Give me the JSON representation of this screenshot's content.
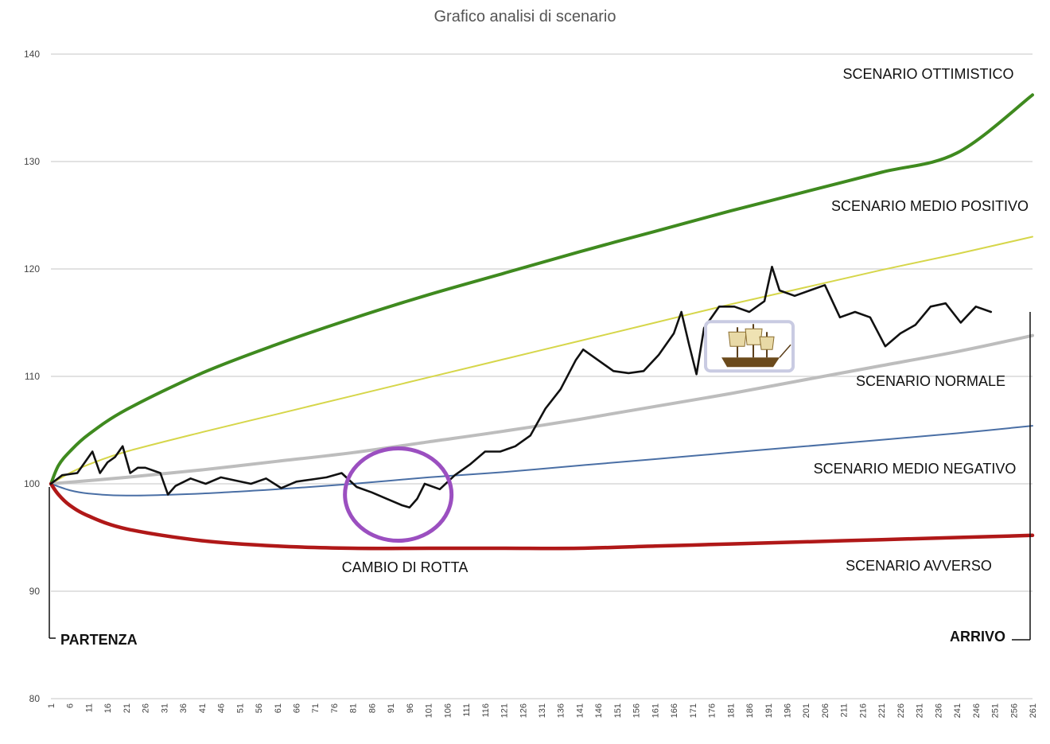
{
  "chart_data": {
    "type": "line",
    "title": "Grafico analisi di scenario",
    "xlabel": "",
    "ylabel": "",
    "ylim": [
      80,
      140
    ],
    "xlim": [
      1,
      261
    ],
    "grid": true,
    "y_ticks": [
      80,
      90,
      100,
      110,
      120,
      130,
      140
    ],
    "x_ticks": [
      1,
      6,
      11,
      16,
      21,
      26,
      31,
      36,
      41,
      46,
      51,
      56,
      61,
      66,
      71,
      76,
      81,
      86,
      91,
      96,
      101,
      106,
      111,
      116,
      121,
      126,
      131,
      136,
      141,
      146,
      151,
      156,
      161,
      166,
      171,
      176,
      181,
      186,
      191,
      196,
      201,
      206,
      211,
      216,
      221,
      226,
      231,
      236,
      241,
      246,
      251,
      256,
      261
    ],
    "series": [
      {
        "key": "ottimistico",
        "label": "SCENARIO OTTIMISTICO",
        "color": "#3f8a1f",
        "x": [
          1,
          3,
          6,
          11,
          21,
          41,
          61,
          81,
          101,
          121,
          141,
          161,
          181,
          201,
          221,
          241,
          261
        ],
        "y": [
          100,
          101.7,
          103.0,
          104.6,
          106.9,
          110.3,
          113.0,
          115.4,
          117.6,
          119.6,
          121.6,
          123.5,
          125.4,
          127.2,
          129.0,
          130.8,
          136.2
        ]
      },
      {
        "key": "medio_positivo",
        "label": "SCENARIO MEDIO POSITIVO",
        "color": "#d6d64a",
        "x": [
          1,
          6,
          11,
          21,
          41,
          61,
          81,
          101,
          121,
          141,
          161,
          181,
          201,
          221,
          241,
          261
        ],
        "y": [
          100,
          101.0,
          101.8,
          103.0,
          104.8,
          106.5,
          108.2,
          109.9,
          111.6,
          113.3,
          115.0,
          116.7,
          118.3,
          119.9,
          121.4,
          123.0
        ]
      },
      {
        "key": "normale",
        "label": "SCENARIO NORMALE",
        "color": "#bdbdbd",
        "x": [
          1,
          21,
          41,
          61,
          81,
          101,
          121,
          141,
          161,
          181,
          201,
          221,
          241,
          261
        ],
        "y": [
          100,
          100.6,
          101.3,
          102.1,
          102.9,
          103.9,
          104.9,
          106.0,
          107.2,
          108.4,
          109.7,
          111.0,
          112.3,
          113.8
        ]
      },
      {
        "key": "medio_negativo",
        "label": "SCENARIO MEDIO NEGATIVO",
        "color": "#4a6fa5",
        "x": [
          1,
          6,
          11,
          21,
          41,
          61,
          81,
          101,
          121,
          141,
          161,
          181,
          201,
          221,
          241,
          261
        ],
        "y": [
          100,
          99.4,
          99.1,
          98.9,
          99.1,
          99.5,
          100.0,
          100.6,
          101.1,
          101.7,
          102.3,
          102.9,
          103.5,
          104.1,
          104.7,
          105.4
        ]
      },
      {
        "key": "avverso",
        "label": "SCENARIO AVVERSO",
        "color": "#b01818",
        "x": [
          1,
          3,
          6,
          11,
          21,
          41,
          61,
          81,
          101,
          121,
          141,
          161,
          181,
          201,
          221,
          241,
          261
        ],
        "y": [
          100,
          99.0,
          98.0,
          97.0,
          95.8,
          94.7,
          94.2,
          94.0,
          94.0,
          94.0,
          94.0,
          94.2,
          94.4,
          94.6,
          94.8,
          95.0,
          95.2
        ]
      },
      {
        "key": "actual",
        "label": "",
        "color": "#111111",
        "x": [
          1,
          4,
          8,
          12,
          14,
          16,
          18,
          20,
          22,
          24,
          26,
          30,
          32,
          34,
          38,
          42,
          46,
          50,
          54,
          58,
          62,
          66,
          70,
          74,
          78,
          82,
          86,
          90,
          94,
          96,
          98,
          100,
          104,
          108,
          112,
          116,
          120,
          124,
          128,
          132,
          136,
          140,
          142,
          146,
          150,
          154,
          158,
          162,
          166,
          168,
          170,
          172,
          174,
          178,
          182,
          186,
          190,
          192,
          194,
          198,
          202,
          206,
          210,
          214,
          218,
          222,
          226,
          230,
          234,
          238,
          242,
          246,
          250
        ],
        "y": [
          100,
          100.8,
          101.0,
          103.0,
          101.0,
          102.0,
          102.5,
          103.5,
          101.0,
          101.5,
          101.5,
          101.0,
          99.0,
          99.8,
          100.5,
          100.0,
          100.6,
          100.3,
          100.0,
          100.5,
          99.6,
          100.2,
          100.4,
          100.6,
          101.0,
          99.7,
          99.2,
          98.6,
          98.0,
          97.8,
          98.6,
          100.0,
          99.5,
          100.8,
          101.8,
          103.0,
          103.0,
          103.5,
          104.5,
          107.0,
          108.8,
          111.5,
          112.5,
          111.5,
          110.5,
          110.3,
          110.5,
          112.0,
          114.0,
          116.0,
          113.0,
          110.2,
          114.5,
          116.5,
          116.5,
          116.0,
          117.0,
          120.2,
          118.0,
          117.5,
          118.0,
          118.5,
          115.5,
          116.0,
          115.5,
          112.8,
          114.0,
          114.8,
          116.5,
          116.8,
          115.0,
          116.5,
          116.0
        ]
      }
    ],
    "labels": {
      "ottimistico": "SCENARIO OTTIMISTICO",
      "medio_positivo": "SCENARIO MEDIO POSITIVO",
      "normale": "SCENARIO NORMALE",
      "medio_negativo": "SCENARIO MEDIO NEGATIVO",
      "avverso": "SCENARIO AVVERSO",
      "cambio_di_rotta": "CAMBIO DI ROTTA",
      "partenza": "PARTENZA",
      "arrivo": "ARRIVO"
    },
    "annotations": {
      "circle_center": {
        "x": 93,
        "y": 99.0
      },
      "circle_color": "#9b4fc0",
      "ship_icon": "sailing-ship-icon",
      "ship_at": {
        "x": 186,
        "y": 112.5
      }
    }
  }
}
